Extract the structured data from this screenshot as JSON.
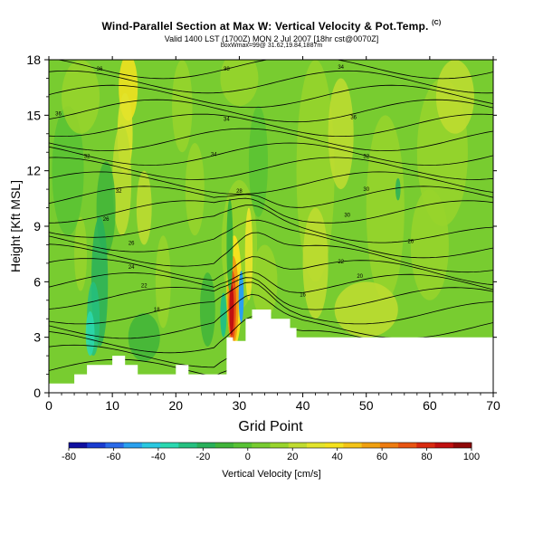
{
  "header": {
    "title": "Wind-Parallel Section at Max W: Vertical Velocity & Pot.Temp.",
    "title_mark": "(C)",
    "valid_line": "Valid 1400 LST (1700Z) MON 2 Jul 2007 [18hr cst@0070Z]",
    "box_line": "boxWmax=99@ 31.62,19.84,1887m"
  },
  "chart_data": {
    "type": "heatmap",
    "xlabel": "Grid Point",
    "ylabel": "Height [Kft MSL]",
    "xlim": [
      0,
      70
    ],
    "ylim": [
      0,
      18
    ],
    "x_ticks": [
      "0",
      "10",
      "20",
      "30",
      "40",
      "50",
      "60",
      "70"
    ],
    "y_ticks": [
      "0",
      "3",
      "6",
      "9",
      "12",
      "15",
      "18"
    ],
    "colorbar": {
      "label": "Vertical Velocity [cm/s]",
      "ticks": [
        "-80",
        "-60",
        "-40",
        "-20",
        "0",
        "20",
        "40",
        "60",
        "80",
        "100"
      ],
      "colors": [
        "#1010a0",
        "#1a3cd0",
        "#2a6ae8",
        "#2aa0ee",
        "#29c8e0",
        "#2ad8b0",
        "#25c080",
        "#28b05a",
        "#40b43a",
        "#58c234",
        "#78cc30",
        "#98d42c",
        "#c0dc30",
        "#e2e42c",
        "#f4e21e",
        "#f4c418",
        "#f0a010",
        "#ee7c10",
        "#e85412",
        "#d82a10",
        "#c01010",
        "#900808"
      ]
    },
    "dominant_w_cm_s": 0,
    "max_updraft_cm_s": 99,
    "max_updraft_grid_point": 29,
    "max_updraft_height_kft": 4.5,
    "contour_labels": [
      "36",
      "38",
      "34",
      "36",
      "34",
      "36",
      "32",
      "34",
      "32",
      "32",
      "28",
      "30",
      "26",
      "30",
      "26",
      "26",
      "24",
      "22",
      "22",
      "20",
      "18",
      "16"
    ]
  },
  "colors": {
    "background": "#ffffff",
    "field_base": "#78cc30",
    "terrain": "#ffffff",
    "contour": "#000000"
  }
}
